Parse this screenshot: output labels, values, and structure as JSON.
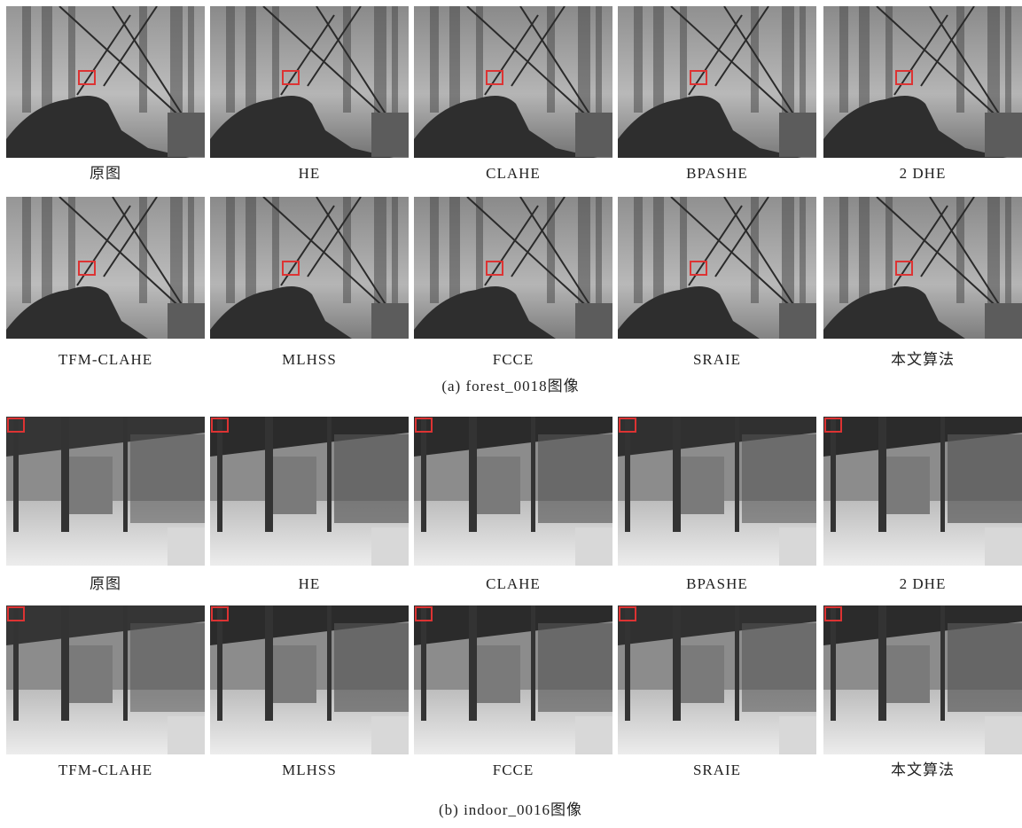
{
  "figure": {
    "panels": [
      {
        "caption": "(a)  forest_0018图像",
        "rows": [
          [
            "原图",
            "HE",
            "CLAHE",
            "BPASHE",
            "2 DHE"
          ],
          [
            "TFM-CLAHE",
            "MLHSS",
            "FCCE",
            "SRAIE",
            "本文算法"
          ]
        ]
      },
      {
        "caption": "(b)  indoor_0016图像",
        "rows": [
          [
            "原图",
            "HE",
            "CLAHE",
            "BPASHE",
            "2 DHE"
          ],
          [
            "TFM-CLAHE",
            "MLHSS",
            "FCCE",
            "SRAIE",
            "本文算法"
          ]
        ]
      }
    ]
  }
}
